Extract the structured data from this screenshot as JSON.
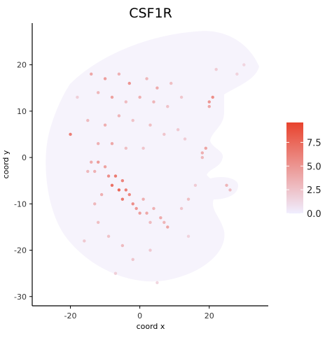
{
  "chart_data": {
    "type": "scatter",
    "title": "CSF1R",
    "xlabel": "coord x",
    "ylabel": "coord y",
    "xlim": [
      -31,
      37
    ],
    "ylim": [
      -32,
      29
    ],
    "x_ticks": [
      -20,
      0,
      20
    ],
    "y_ticks": [
      20,
      10,
      0,
      -10,
      -20,
      -30
    ],
    "grid": false,
    "legend_position": "right",
    "color_scale": {
      "range": [
        0,
        9.6
      ],
      "ticks": [
        0.0,
        2.5,
        5.0,
        7.5
      ],
      "tick_labels": [
        "0.0",
        "2.5",
        "5.0",
        "7.5"
      ],
      "low_color": "#f0eeff",
      "high_color": "#e8432d"
    },
    "points": [
      {
        "x": -14,
        "y": 18,
        "v": 4.5
      },
      {
        "x": -10,
        "y": 17,
        "v": 5.0
      },
      {
        "x": -6,
        "y": 18,
        "v": 3.8
      },
      {
        "x": -3,
        "y": 16,
        "v": 5.6
      },
      {
        "x": 2,
        "y": 17,
        "v": 3.5
      },
      {
        "x": 5,
        "y": 15,
        "v": 4.2
      },
      {
        "x": 9,
        "y": 16,
        "v": 3.0
      },
      {
        "x": -12,
        "y": 14,
        "v": 3.5
      },
      {
        "x": -8,
        "y": 13,
        "v": 4.8
      },
      {
        "x": -4,
        "y": 12,
        "v": 3.2
      },
      {
        "x": 0,
        "y": 13,
        "v": 4.0
      },
      {
        "x": 4,
        "y": 12,
        "v": 3.6
      },
      {
        "x": 8,
        "y": 11,
        "v": 2.8
      },
      {
        "x": 12,
        "y": 13,
        "v": 2.5
      },
      {
        "x": 20,
        "y": 12,
        "v": 5.5
      },
      {
        "x": 21,
        "y": 13,
        "v": 6.0
      },
      {
        "x": 20,
        "y": 11,
        "v": 4.5
      },
      {
        "x": -20,
        "y": 5,
        "v": 7.0
      },
      {
        "x": -15,
        "y": 8,
        "v": 3.2
      },
      {
        "x": -10,
        "y": 7,
        "v": 4.0
      },
      {
        "x": -6,
        "y": 9,
        "v": 3.6
      },
      {
        "x": -2,
        "y": 8,
        "v": 2.8
      },
      {
        "x": 3,
        "y": 7,
        "v": 3.0
      },
      {
        "x": 7,
        "y": 5,
        "v": 2.6
      },
      {
        "x": 11,
        "y": 6,
        "v": 2.4
      },
      {
        "x": -12,
        "y": 3,
        "v": 3.8
      },
      {
        "x": -8,
        "y": 3,
        "v": 4.4
      },
      {
        "x": -4,
        "y": 2,
        "v": 3.0
      },
      {
        "x": 1,
        "y": 2,
        "v": 2.6
      },
      {
        "x": 13,
        "y": 4,
        "v": 2.2
      },
      {
        "x": 18,
        "y": 1,
        "v": 4.0
      },
      {
        "x": 19,
        "y": 2,
        "v": 4.6
      },
      {
        "x": 18,
        "y": 0,
        "v": 3.4
      },
      {
        "x": -14,
        "y": -1,
        "v": 4.2
      },
      {
        "x": -12,
        "y": -1,
        "v": 5.2
      },
      {
        "x": -10,
        "y": -2,
        "v": 4.8
      },
      {
        "x": -13,
        "y": -3,
        "v": 3.8
      },
      {
        "x": -15,
        "y": -3,
        "v": 3.4
      },
      {
        "x": -9,
        "y": -4,
        "v": 6.0
      },
      {
        "x": -7,
        "y": -4,
        "v": 7.2
      },
      {
        "x": -5,
        "y": -5,
        "v": 6.6
      },
      {
        "x": -8,
        "y": -6,
        "v": 7.8
      },
      {
        "x": -6,
        "y": -7,
        "v": 8.4
      },
      {
        "x": -4,
        "y": -7,
        "v": 7.0
      },
      {
        "x": -3,
        "y": -8,
        "v": 6.4
      },
      {
        "x": -5,
        "y": -9,
        "v": 7.4
      },
      {
        "x": -2,
        "y": -10,
        "v": 6.0
      },
      {
        "x": -1,
        "y": -11,
        "v": 5.4
      },
      {
        "x": 0,
        "y": -12,
        "v": 5.0
      },
      {
        "x": 2,
        "y": -12,
        "v": 4.4
      },
      {
        "x": 1,
        "y": -9,
        "v": 4.0
      },
      {
        "x": 4,
        "y": -11,
        "v": 3.8
      },
      {
        "x": 6,
        "y": -13,
        "v": 4.2
      },
      {
        "x": 8,
        "y": -15,
        "v": 4.6
      },
      {
        "x": 7,
        "y": -14,
        "v": 3.6
      },
      {
        "x": 3,
        "y": -14,
        "v": 3.2
      },
      {
        "x": -11,
        "y": -8,
        "v": 4.0
      },
      {
        "x": -13,
        "y": -10,
        "v": 3.4
      },
      {
        "x": -12,
        "y": -14,
        "v": 3.0
      },
      {
        "x": -9,
        "y": -17,
        "v": 2.8
      },
      {
        "x": -5,
        "y": -19,
        "v": 3.2
      },
      {
        "x": -2,
        "y": -22,
        "v": 2.6
      },
      {
        "x": 3,
        "y": -20,
        "v": 2.4
      },
      {
        "x": 12,
        "y": -11,
        "v": 2.6
      },
      {
        "x": 14,
        "y": -9,
        "v": 3.0
      },
      {
        "x": 16,
        "y": -6,
        "v": 2.2
      },
      {
        "x": 25,
        "y": -6,
        "v": 3.6
      },
      {
        "x": 26,
        "y": -7,
        "v": 3.2
      },
      {
        "x": -16,
        "y": -18,
        "v": 2.4
      },
      {
        "x": -7,
        "y": -25,
        "v": 2.0
      },
      {
        "x": 5,
        "y": -27,
        "v": 1.6
      },
      {
        "x": 14,
        "y": -17,
        "v": 1.8
      },
      {
        "x": 22,
        "y": 19,
        "v": 2.2
      },
      {
        "x": 28,
        "y": 18,
        "v": 1.8
      },
      {
        "x": 30,
        "y": 20,
        "v": 1.6
      },
      {
        "x": -18,
        "y": 13,
        "v": 2.0
      }
    ]
  }
}
